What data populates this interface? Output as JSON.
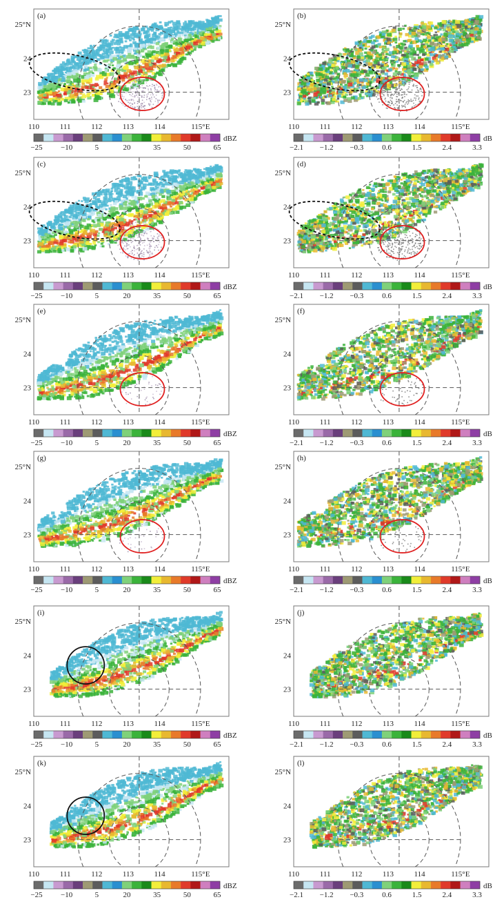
{
  "figure": {
    "panels": [
      {
        "label": "(a)",
        "field": "reflectivity",
        "features": [
          "dashed-ellipse",
          "red-circle"
        ],
        "extent": "short"
      },
      {
        "label": "(b)",
        "field": "zdr",
        "features": [
          "dashed-ellipse",
          "red-circle"
        ],
        "extent": "short"
      },
      {
        "label": "(c)",
        "field": "reflectivity",
        "features": [
          "dashed-ellipse",
          "red-circle"
        ],
        "extent": "short"
      },
      {
        "label": "(d)",
        "field": "zdr",
        "features": [
          "dashed-ellipse",
          "red-circle"
        ],
        "extent": "short"
      },
      {
        "label": "(e)",
        "field": "reflectivity",
        "features": [
          "red-circle"
        ],
        "extent": "mid"
      },
      {
        "label": "(f)",
        "field": "zdr",
        "features": [
          "red-circle"
        ],
        "extent": "mid"
      },
      {
        "label": "(g)",
        "field": "reflectivity",
        "features": [
          "red-circle"
        ],
        "extent": "mid"
      },
      {
        "label": "(h)",
        "field": "zdr",
        "features": [
          "red-circle"
        ],
        "extent": "mid"
      },
      {
        "label": "(i)",
        "field": "reflectivity",
        "features": [
          "black-circle"
        ],
        "extent": "long"
      },
      {
        "label": "(j)",
        "field": "zdr",
        "features": [],
        "extent": "long"
      },
      {
        "label": "(k)",
        "field": "reflectivity",
        "features": [
          "black-circle"
        ],
        "extent": "long"
      },
      {
        "label": "(l)",
        "field": "zdr",
        "features": [],
        "extent": "long"
      }
    ],
    "x_ticks": [
      "110",
      "111",
      "112",
      "113",
      "114",
      "115°E"
    ],
    "y_ticks": [
      "25°N",
      "24",
      "23"
    ],
    "colorbars": {
      "reflectivity": {
        "unit": "dBZ",
        "ticks": [
          "−25",
          "−10",
          "5",
          "20",
          "35",
          "50",
          "65"
        ]
      },
      "zdr": {
        "unit": "dB",
        "ticks": [
          "−2.1",
          "−1.2",
          "−0.3",
          "0.6",
          "1.5",
          "2.4",
          "3.3"
        ]
      }
    },
    "palette": [
      "#6b6b6b",
      "#c6e6f2",
      "#c89ad0",
      "#9a6aa8",
      "#6a3f7c",
      "#9e9a74",
      "#5c5c5c",
      "#4fb8d4",
      "#2a8fd0",
      "#7fd17a",
      "#3bb33b",
      "#1a8a1a",
      "#f2ee3a",
      "#e8b830",
      "#e87a2a",
      "#e03a2a",
      "#b01818",
      "#cf7fbf",
      "#8e3ea4"
    ],
    "colors": {
      "red_circle": "#e02020",
      "black_circle": "#111111",
      "frame": "#777777",
      "radar_ring": "#555555"
    }
  }
}
